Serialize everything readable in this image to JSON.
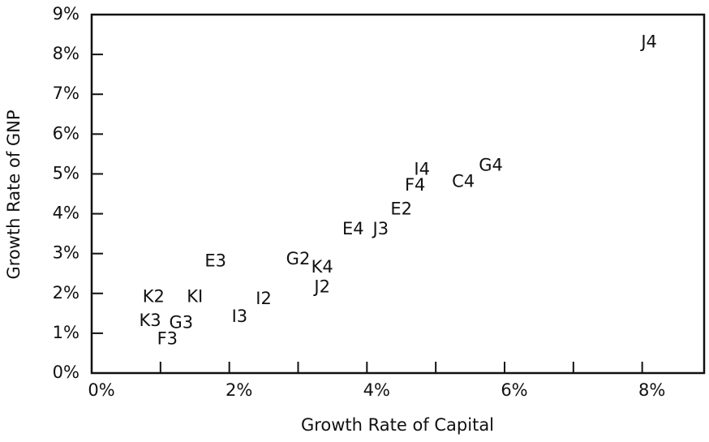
{
  "chart_data": {
    "type": "scatter",
    "xlabel": "Growth Rate of Capital",
    "ylabel": "Growth Rate of GNP",
    "xlim": [
      0,
      8.9
    ],
    "ylim": [
      0,
      9
    ],
    "xticks": [
      {
        "value": 0,
        "label": "0%"
      },
      {
        "value": 2,
        "label": "2%"
      },
      {
        "value": 4,
        "label": "4%"
      },
      {
        "value": 6,
        "label": "6%"
      },
      {
        "value": 8,
        "label": "8%"
      }
    ],
    "xminor": [
      1,
      3,
      5,
      7
    ],
    "yticks": [
      {
        "value": 0,
        "label": "0%"
      },
      {
        "value": 1,
        "label": "1%"
      },
      {
        "value": 2,
        "label": "2%"
      },
      {
        "value": 3,
        "label": "3%"
      },
      {
        "value": 4,
        "label": "4%"
      },
      {
        "value": 5,
        "label": "5%"
      },
      {
        "value": 6,
        "label": "6%"
      },
      {
        "value": 7,
        "label": "7%"
      },
      {
        "value": 8,
        "label": "8%"
      },
      {
        "value": 9,
        "label": "9%"
      }
    ],
    "color": "#111111",
    "points": [
      {
        "label": "J4",
        "x": 8.1,
        "y": 8.3
      },
      {
        "label": "G4",
        "x": 5.8,
        "y": 5.2
      },
      {
        "label": "I4",
        "x": 4.8,
        "y": 5.1
      },
      {
        "label": "C4",
        "x": 5.4,
        "y": 4.8
      },
      {
        "label": "F4",
        "x": 4.7,
        "y": 4.7
      },
      {
        "label": "E2",
        "x": 4.5,
        "y": 4.1
      },
      {
        "label": "E4",
        "x": 3.8,
        "y": 3.6
      },
      {
        "label": "J3",
        "x": 4.2,
        "y": 3.6
      },
      {
        "label": "G2",
        "x": 3.0,
        "y": 2.85
      },
      {
        "label": "K4",
        "x": 3.35,
        "y": 2.65
      },
      {
        "label": "J2",
        "x": 3.35,
        "y": 2.15
      },
      {
        "label": "E3",
        "x": 1.8,
        "y": 2.8
      },
      {
        "label": "I2",
        "x": 2.5,
        "y": 1.85
      },
      {
        "label": "I3",
        "x": 2.15,
        "y": 1.4
      },
      {
        "label": "K2",
        "x": 0.9,
        "y": 1.9
      },
      {
        "label": "KI",
        "x": 1.5,
        "y": 1.9
      },
      {
        "label": "K3",
        "x": 0.85,
        "y": 1.3
      },
      {
        "label": "G3",
        "x": 1.3,
        "y": 1.25
      },
      {
        "label": "F3",
        "x": 1.1,
        "y": 0.85
      }
    ]
  }
}
